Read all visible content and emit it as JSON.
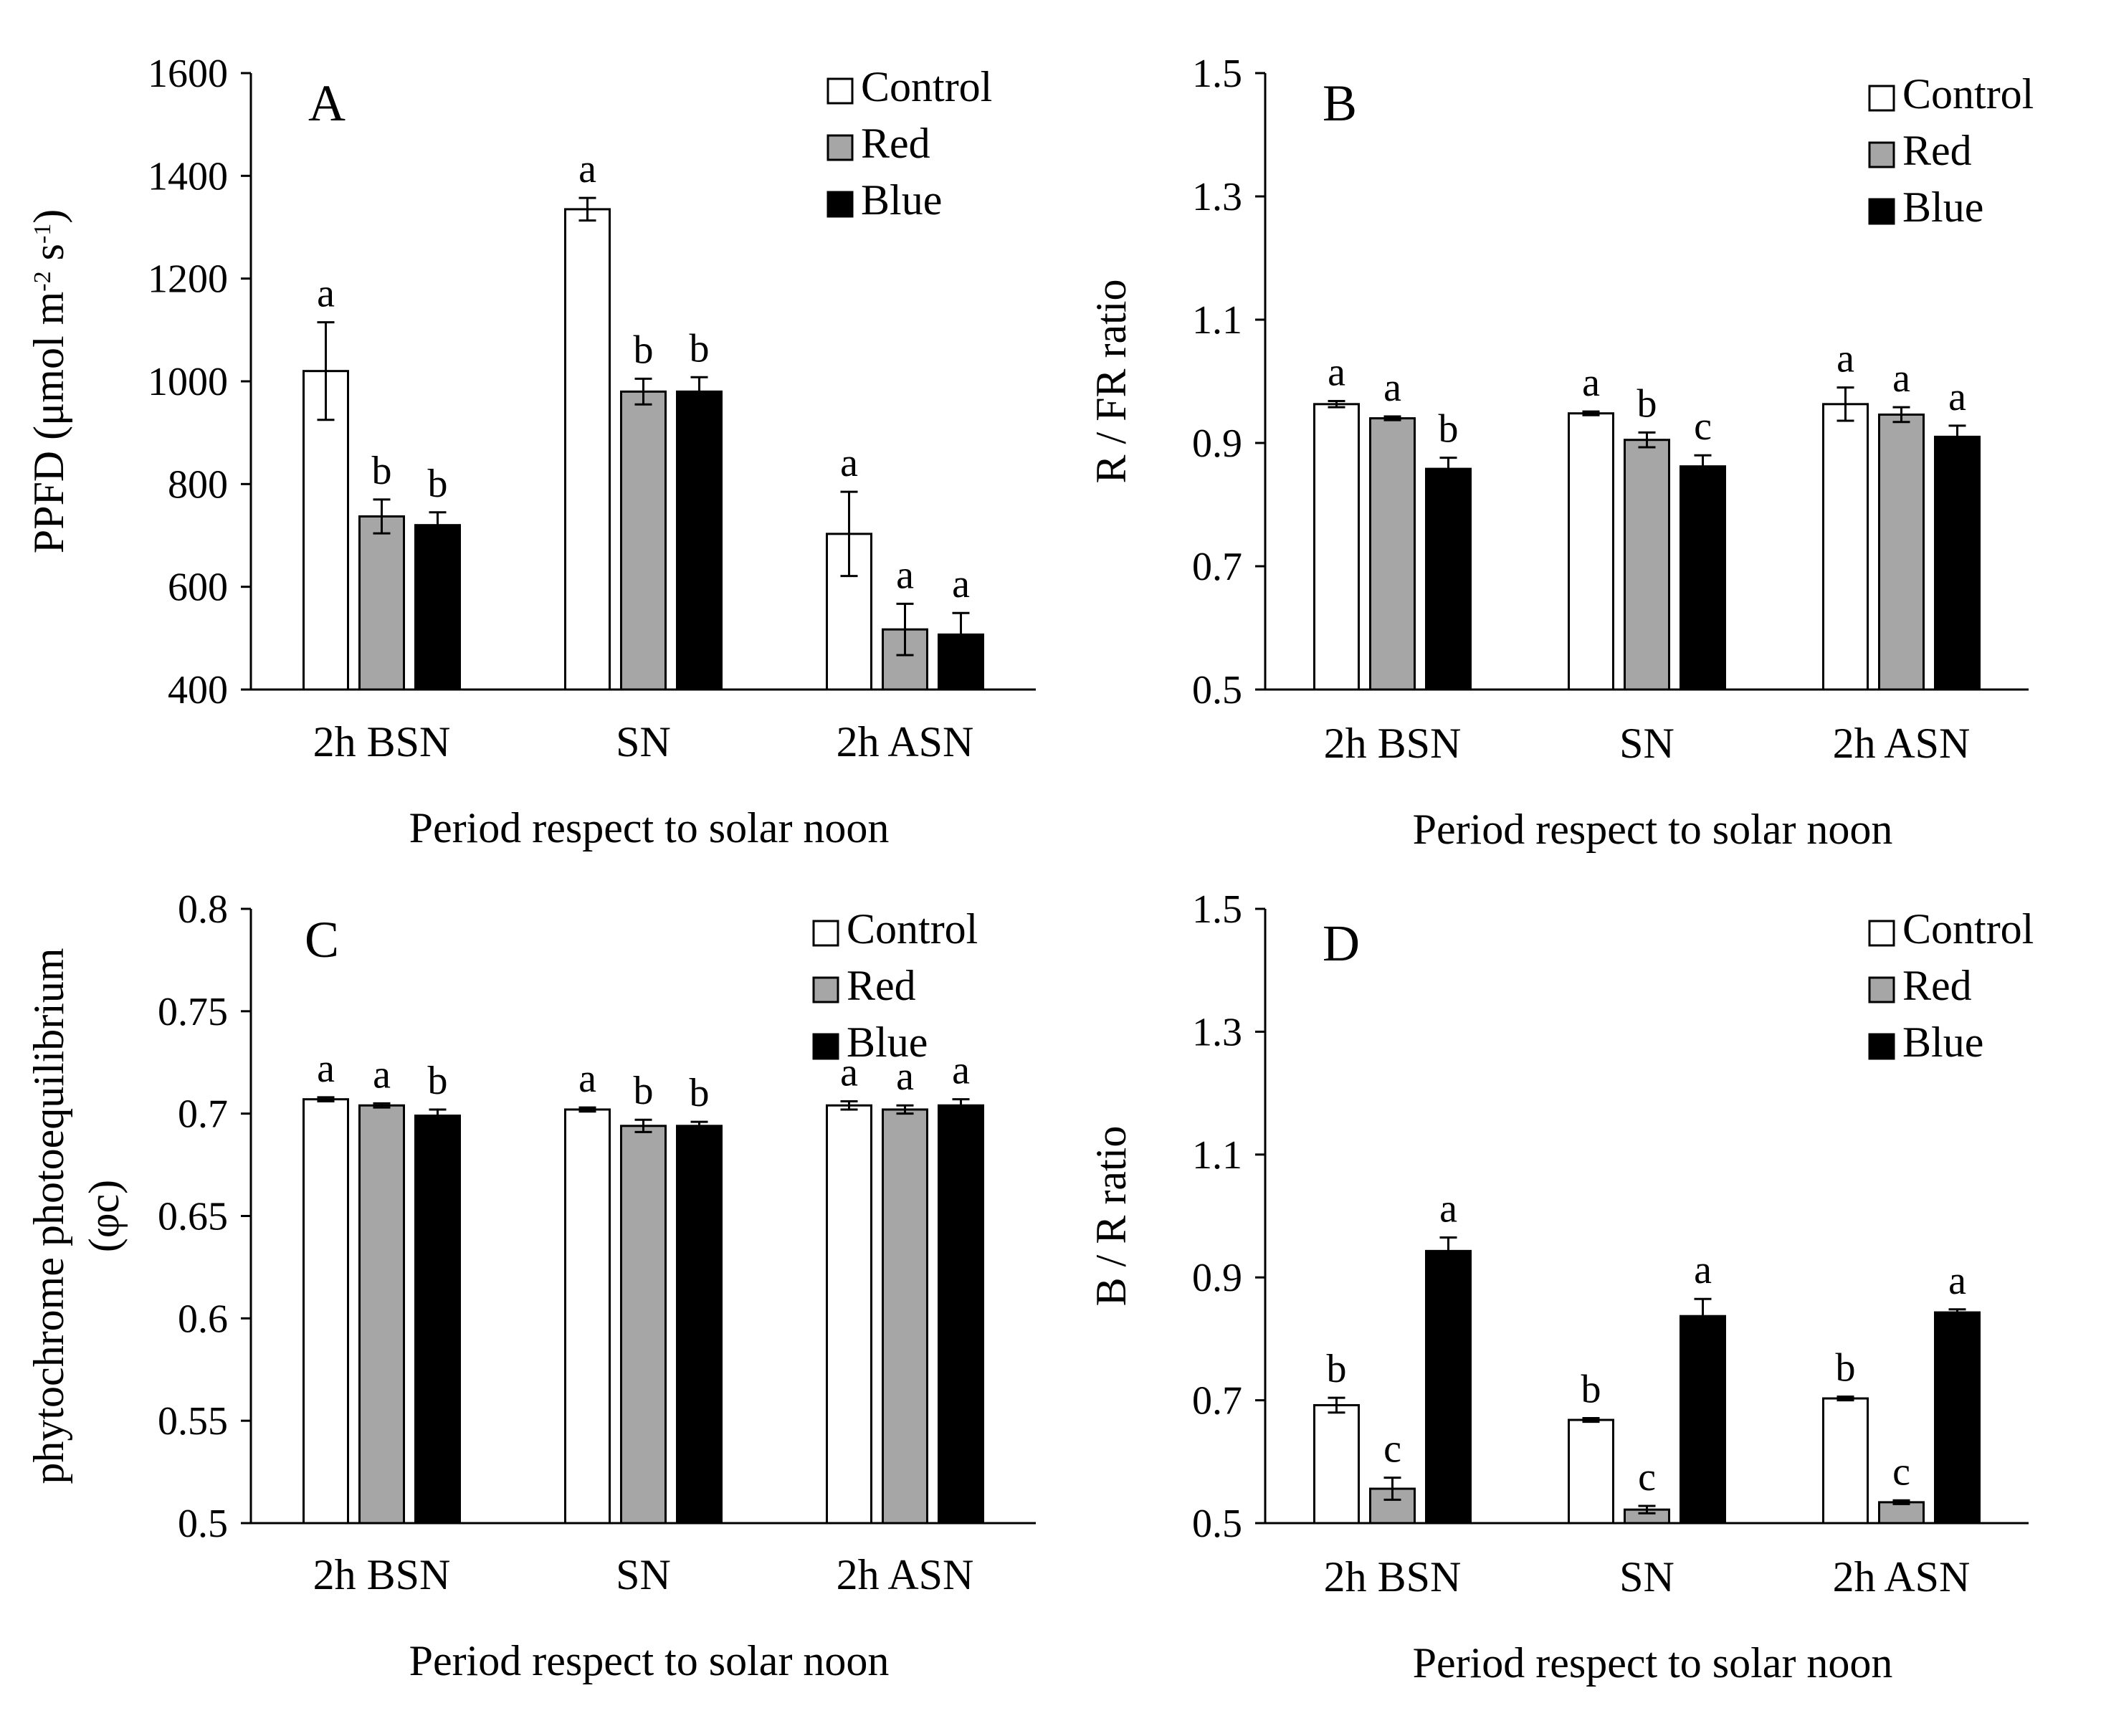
{
  "figure": {
    "legend": [
      {
        "name": "Control",
        "color": "#ffffff"
      },
      {
        "name": "Red",
        "color": "#a6a6a6"
      },
      {
        "name": "Blue",
        "color": "#000000"
      }
    ]
  },
  "chart_data": [
    {
      "type": "bar",
      "panel": "A",
      "title": "",
      "ylabel_html": "PPFD (μmol m<tspan baseline-shift=\"super\" font-size=\"34\">-2</tspan> s<tspan baseline-shift=\"super\" font-size=\"34\">-1</tspan>)",
      "ylabel": "PPFD (μmol m-2 s-1)",
      "xlabel": "Period respect to solar noon",
      "categories": [
        "2h BSN",
        "SN",
        "2h ASN"
      ],
      "ylim": [
        400,
        1600
      ],
      "yticks": [
        400,
        600,
        800,
        1000,
        1200,
        1400,
        1600
      ],
      "ytick_labels": [
        "400",
        "600",
        "800",
        "1000",
        "1200",
        "1400",
        "1600"
      ],
      "legend_labels": [
        "Control",
        "Red",
        "Blue"
      ],
      "series": [
        {
          "name": "Control",
          "color": "#ffffff",
          "values": [
            1020,
            1335,
            703
          ],
          "errors": [
            95,
            22,
            82
          ],
          "letters": [
            "a",
            "a",
            "a"
          ]
        },
        {
          "name": "Red",
          "color": "#a6a6a6",
          "values": [
            737,
            980,
            517
          ],
          "errors": [
            33,
            25,
            50
          ],
          "letters": [
            "b",
            "b",
            "a"
          ]
        },
        {
          "name": "Blue",
          "color": "#000000",
          "values": [
            720,
            980,
            507
          ],
          "errors": [
            25,
            28,
            42
          ],
          "letters": [
            "b",
            "b",
            "a"
          ]
        }
      ]
    },
    {
      "type": "bar",
      "panel": "B",
      "title": "",
      "ylabel": "R / FR ratio",
      "xlabel": "Period respect to solar noon",
      "categories": [
        "2h BSN",
        "SN",
        "2h ASN"
      ],
      "ylim": [
        0.5,
        1.5
      ],
      "yticks": [
        0.5,
        0.7,
        0.9,
        1.1,
        1.3,
        1.5
      ],
      "ytick_labels": [
        "0.5",
        "0.7",
        "0.9",
        "1.1",
        "1.3",
        "1.5"
      ],
      "legend_labels": [
        "Control",
        "Red",
        "Blue"
      ],
      "series": [
        {
          "name": "Control",
          "color": "#ffffff",
          "values": [
            0.963,
            0.948,
            0.963
          ],
          "errors": [
            0.005,
            0.003,
            0.027
          ],
          "letters": [
            "a",
            "a",
            "a"
          ]
        },
        {
          "name": "Red",
          "color": "#a6a6a6",
          "values": [
            0.94,
            0.905,
            0.946
          ],
          "errors": [
            0.003,
            0.012,
            0.012
          ],
          "letters": [
            "a",
            "b",
            "a"
          ]
        },
        {
          "name": "Blue",
          "color": "#000000",
          "values": [
            0.858,
            0.862,
            0.91
          ],
          "errors": [
            0.018,
            0.018,
            0.018
          ],
          "letters": [
            "b",
            "c",
            "a"
          ]
        }
      ]
    },
    {
      "type": "bar",
      "panel": "C",
      "title": "",
      "ylabel": "phytochrome photoequilibrium",
      "ylabel2": "(φc)",
      "xlabel": "Period respect to solar noon",
      "categories": [
        "2h BSN",
        "SN",
        "2h ASN"
      ],
      "ylim": [
        0.5,
        0.8
      ],
      "yticks": [
        0.5,
        0.55,
        0.6,
        0.65,
        0.7,
        0.75,
        0.8
      ],
      "ytick_labels": [
        "0.5",
        "0.55",
        "0.6",
        "0.65",
        "0.7",
        "0.75",
        "0.8"
      ],
      "legend_labels": [
        "Control",
        "Red",
        "Blue"
      ],
      "series": [
        {
          "name": "Control",
          "color": "#ffffff",
          "values": [
            0.707,
            0.702,
            0.704
          ],
          "errors": [
            0.001,
            0.001,
            0.002
          ],
          "letters": [
            "a",
            "a",
            "a"
          ]
        },
        {
          "name": "Red",
          "color": "#a6a6a6",
          "values": [
            0.704,
            0.694,
            0.702
          ],
          "errors": [
            0.001,
            0.003,
            0.002
          ],
          "letters": [
            "a",
            "b",
            "a"
          ]
        },
        {
          "name": "Blue",
          "color": "#000000",
          "values": [
            0.699,
            0.694,
            0.704
          ],
          "errors": [
            0.003,
            0.002,
            0.003
          ],
          "letters": [
            "b",
            "b",
            "a"
          ]
        }
      ]
    },
    {
      "type": "bar",
      "panel": "D",
      "title": "",
      "ylabel": "B / R ratio",
      "xlabel": "Period respect to solar noon",
      "categories": [
        "2h BSN",
        "SN",
        "2h ASN"
      ],
      "ylim": [
        0.5,
        1.5
      ],
      "yticks": [
        0.5,
        0.7,
        0.9,
        1.1,
        1.3,
        1.5
      ],
      "ytick_labels": [
        "0.5",
        "0.7",
        "0.9",
        "1.1",
        "1.3",
        "1.5"
      ],
      "legend_labels": [
        "Control",
        "Red",
        "Blue"
      ],
      "series": [
        {
          "name": "Control",
          "color": "#ffffff",
          "values": [
            0.692,
            0.668,
            0.703
          ],
          "errors": [
            0.012,
            0.003,
            0.003
          ],
          "letters": [
            "b",
            "b",
            "b"
          ]
        },
        {
          "name": "Red",
          "color": "#a6a6a6",
          "values": [
            0.556,
            0.522,
            0.534
          ],
          "errors": [
            0.018,
            0.006,
            0.003
          ],
          "letters": [
            "c",
            "c",
            "c"
          ]
        },
        {
          "name": "Blue",
          "color": "#000000",
          "values": [
            0.943,
            0.837,
            0.843
          ],
          "errors": [
            0.022,
            0.028,
            0.005
          ],
          "letters": [
            "a",
            "a",
            "a"
          ]
        }
      ]
    }
  ]
}
